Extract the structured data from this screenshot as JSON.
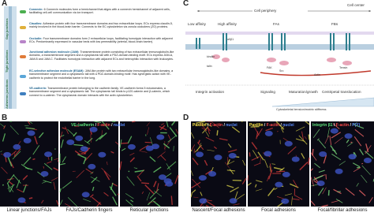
{
  "panel_a": {
    "letter": "A",
    "side_labels": [
      "Gap junctions",
      "Tight junctions",
      "Adherens junctions"
    ],
    "entries": [
      {
        "name": "Connexin:",
        "text": "6 Connexin molecules form a hemichannel that aligns with a connexin hemichannel of adjacent cells, facilitating cell-cell communication via ion transport."
      },
      {
        "name": "Claudins:",
        "text": "Adhesion protein with four transmembrane domains and two extracellular loops. ECs express claudin-5, mainly involved in the blood-brain barrier. Connects to the EC cytoskeleton via zonula occludens (ZO) proteins."
      },
      {
        "name": "Occludin:",
        "text": "Four transmembrane domains form 2 extracellular loops, facilitating homotypic interaction with adjacent ECs. Predominantly expressed in vascular beds with low permeability (arterial, blood-brain barrier)."
      },
      {
        "name": "Junctional adhesion molecule (JAM):",
        "text": "Transmembrane protein consisting of two extracellular immunoglobulin-like domains, a transmembrane segment and a cytoplasmic tail with a PDZ-domain-binding motif. ECs express JAM-A, JAM-B and JAM-C. Facilitates homotypic interaction with adjacent ECs and heterophilic interaction with leukocytes."
      },
      {
        "name": "EC-selective adhesion molecule (ESAM):",
        "text": "JAM-like protein with two extracellular immunoglobulin-like domains, a transmembrane segment and a cytoplasmic tail with a PDZ-domain-binding motif. Has synergistic action with VE-cadherin to protect the endothelial barrier in the lung."
      },
      {
        "name": "VE-cadherin:",
        "text": "Transmembrane protein belonging to the cadherin family. VE-cadherin forms 5 ectodomains, a transmembrane segment and a cytoplasmic tail. The cytoplasmic tail binds to p120-catenin and β-catenin, which connect to α-catenin. The cytoplasmic domain interacts with the actin cytoskeleton."
      }
    ]
  },
  "panel_b": {
    "letter": "B",
    "separator": " / ",
    "legend": [
      "VE-cadherin",
      "F-actin",
      "nuclei"
    ],
    "captions": [
      "Linear junctions/FAJs",
      "FAJs/Cadherin fingers",
      "Reticular junctions"
    ]
  },
  "panel_c": {
    "letter": "C",
    "periphery": "Cell periphery",
    "center": "Cell center",
    "states": [
      "Low affinity",
      "High affinity",
      "FAs",
      "FBs"
    ],
    "proteins": [
      "talin",
      "kindlin",
      "FAK",
      "Src",
      "Actin",
      "Tensin",
      "α5β1"
    ],
    "stages": [
      "Integrin activation",
      "Signaling",
      "Maturation/growth",
      "Centripetal translocation"
    ],
    "gradient": "Cytoskeletal tension/matrix stiffness"
  },
  "panel_d": {
    "letter": "D",
    "separator": " / ",
    "legends": [
      [
        "Paxillin",
        "F-actin",
        "nuclei"
      ],
      [
        "Paxillin",
        "F-actin",
        "nuclei"
      ],
      [
        "Integrin β1",
        "F-actin",
        "P(Y)"
      ]
    ],
    "captions": [
      "Nascent/Focal adhesions",
      "Focal adhesions",
      "Focal/fibrillar adhesions"
    ]
  }
}
